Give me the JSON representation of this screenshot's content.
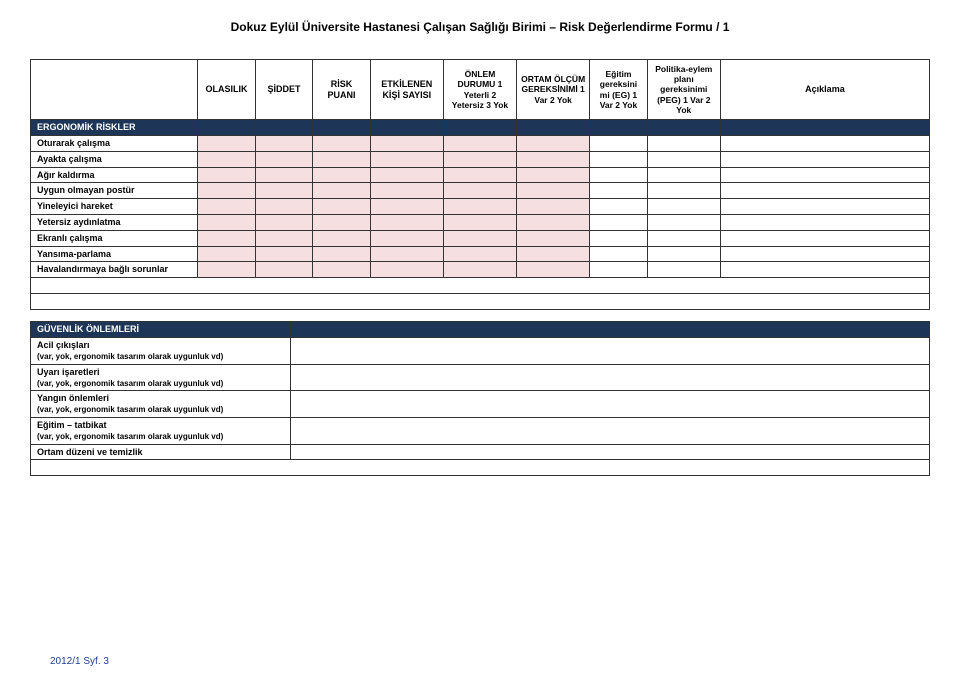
{
  "title": "Dokuz Eylül Üniversite Hastanesi Çalışan Sağlığı Birimi – Risk Değerlendirme Formu / 1",
  "headers": {
    "c1": "OLASILIK",
    "c2": "ŞİDDET",
    "c3": "RİSK PUANI",
    "c4": "ETKİLENEN KİŞİ SAYISI",
    "c5": "ÖNLEM DURUMU\n1 Yeterli\n2 Yetersiz\n3 Yok",
    "c6": "ORTAM ÖLÇÜM GEREKSİNİMİ\n1 Var\n2 Yok",
    "c7": "Eğitim gereksini mi (EG)\n1 Var\n2 Yok",
    "c8": "Politika-eylem planı gereksinimi (PEG)\n1 Var\n2 Yok",
    "c9": "Açıklama"
  },
  "section1": "ERGONOMİK RİSKLER",
  "rows1": [
    "Oturarak çalışma",
    "Ayakta çalışma",
    "Ağır kaldırma",
    "Uygun olmayan postür",
    "Yineleyici hareket",
    "Yetersiz aydınlatma",
    "Ekranlı çalışma",
    "Yansıma-parlama",
    "Havalandırmaya bağlı sorunlar"
  ],
  "section2": "GÜVENLİK ÖNLEMLERİ",
  "rows2": [
    {
      "t": "Acil çıkışları",
      "s": "(var, yok, ergonomik tasarım olarak uygunluk vd)"
    },
    {
      "t": "Uyarı işaretleri",
      "s": "(var, yok, ergonomik tasarım olarak uygunluk vd)"
    },
    {
      "t": "Yangın önlemleri",
      "s": "(var, yok, ergonomik tasarım olarak uygunluk vd)"
    },
    {
      "t": "Eğitim – tatbikat",
      "s": "(var, yok, ergonomik tasarım olarak uygunluk vd)"
    },
    {
      "t": "Ortam düzeni ve temizlik",
      "s": ""
    }
  ],
  "footer": "2012/1 Syf. 3"
}
